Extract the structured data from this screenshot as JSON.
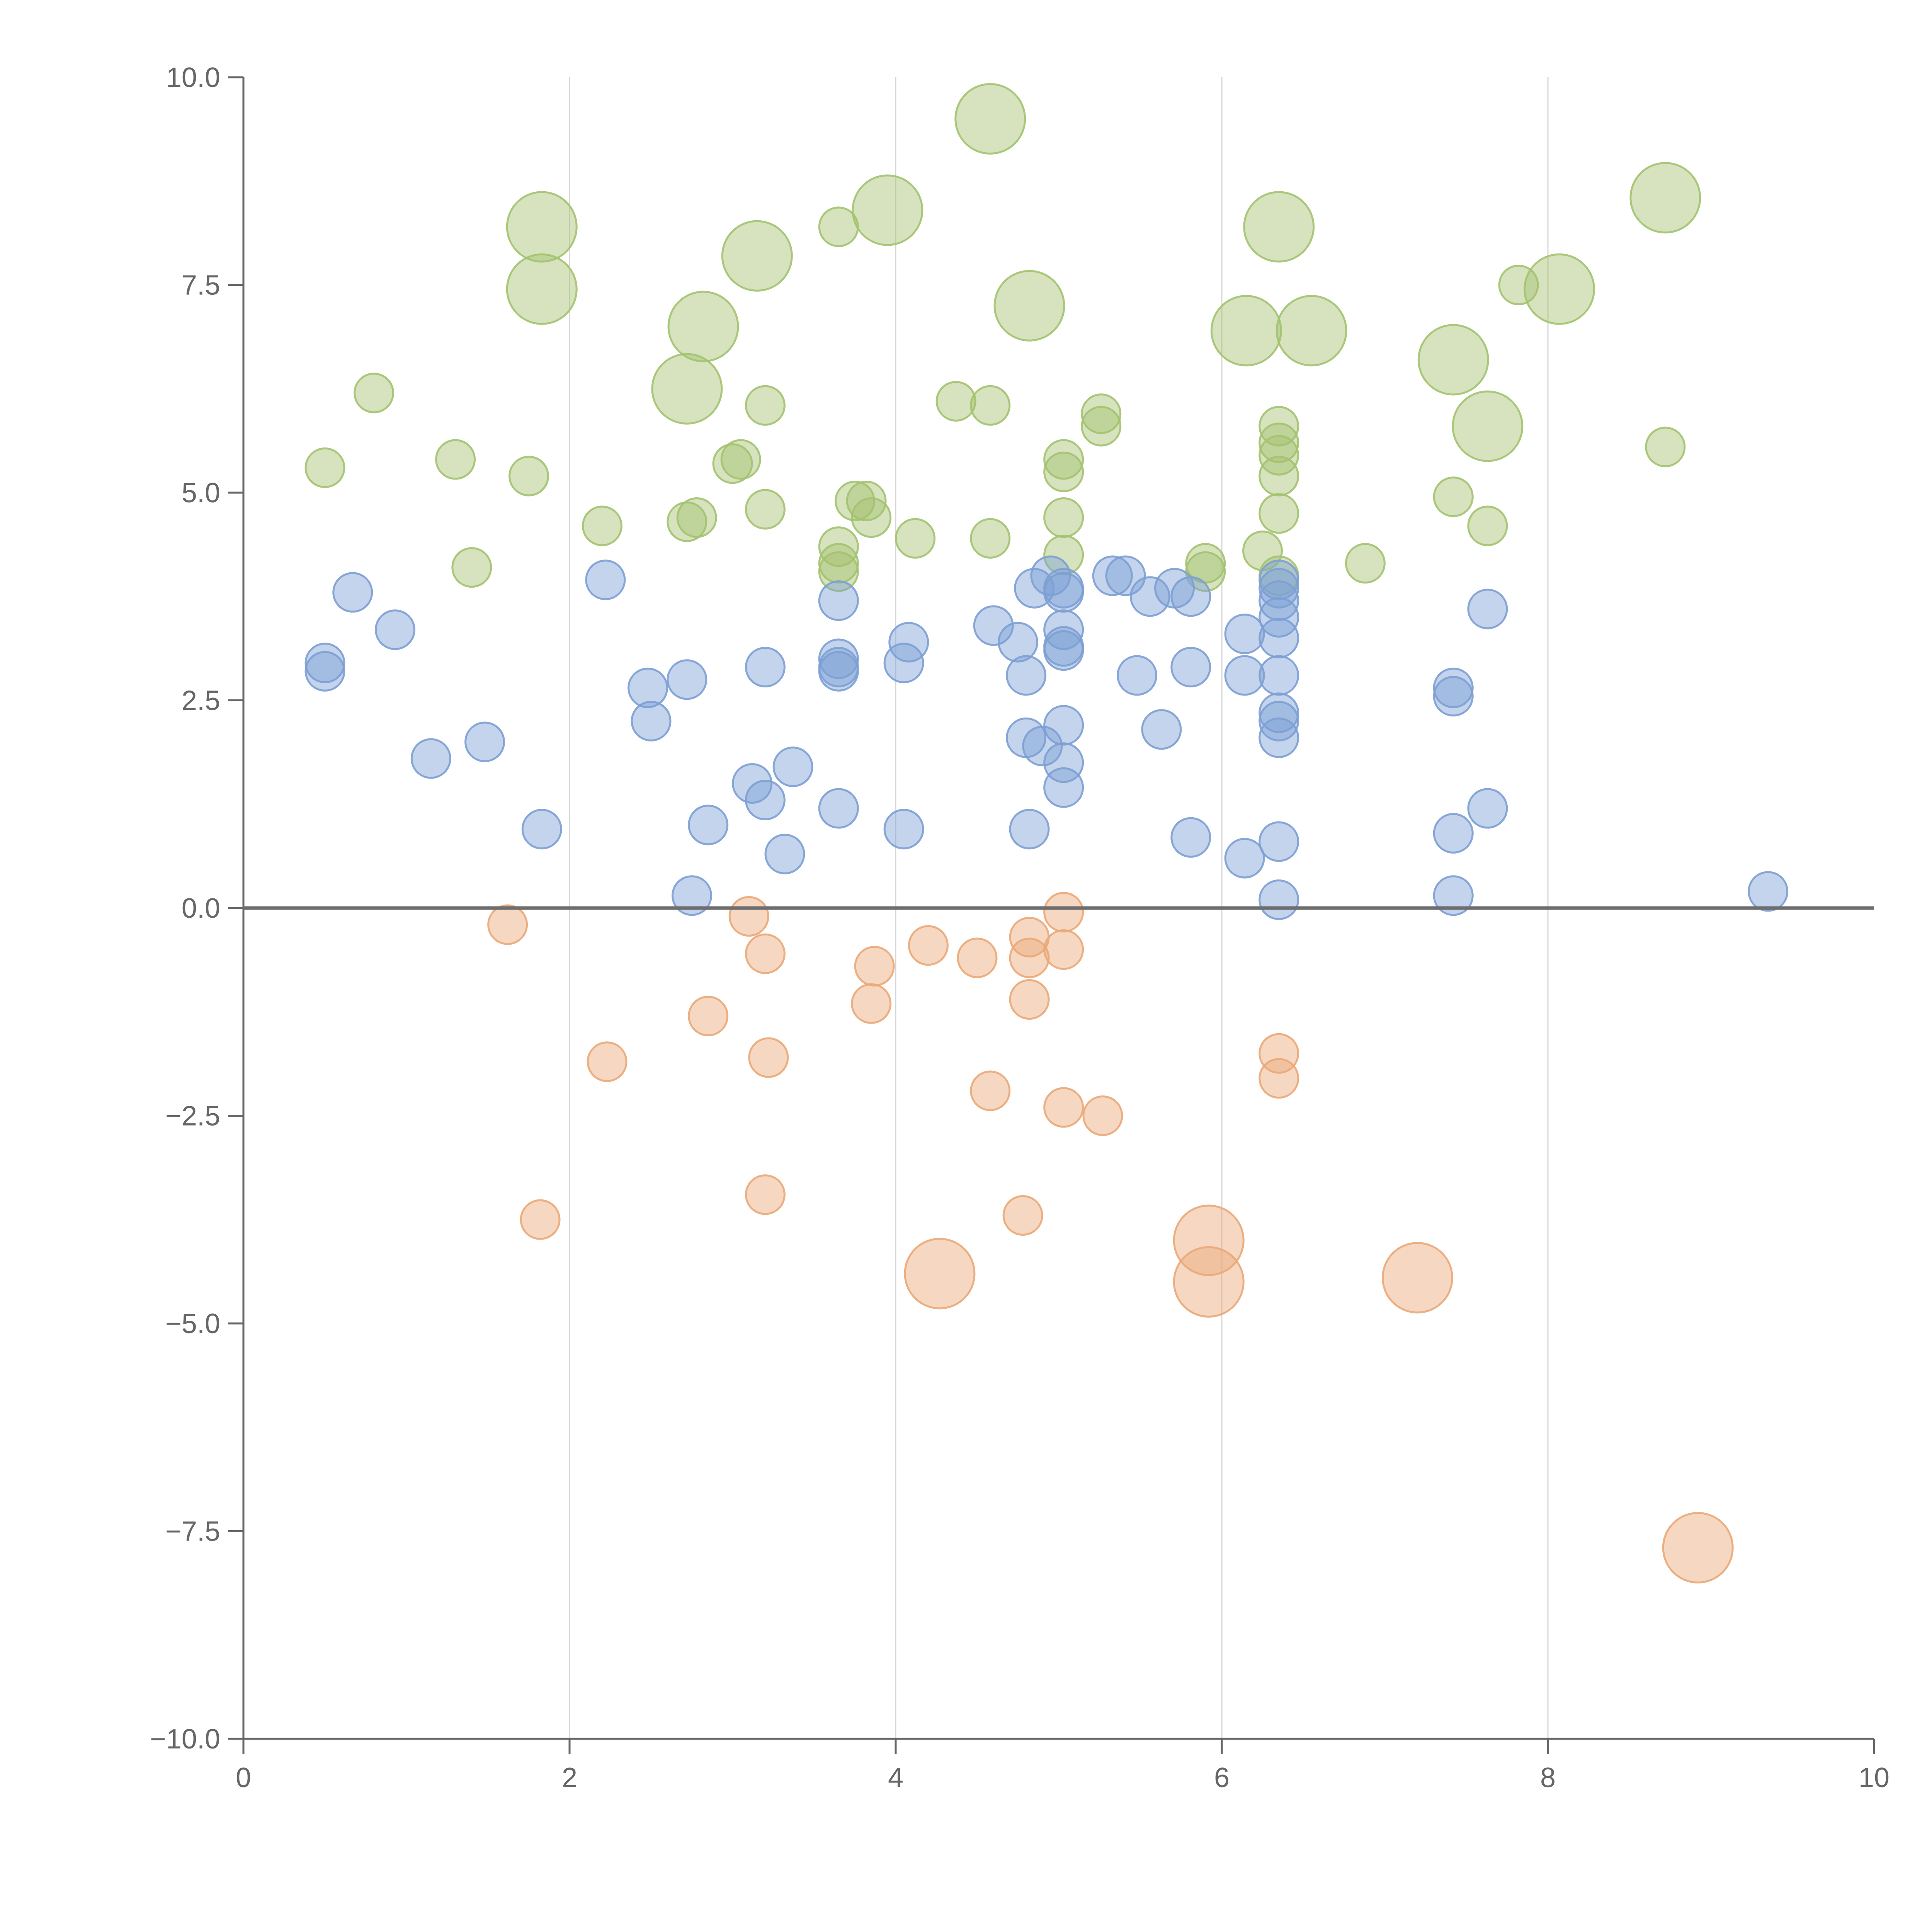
{
  "chart_data": {
    "type": "scatter",
    "title": "",
    "xlabel": "",
    "ylabel": "",
    "xlim": [
      0,
      10
    ],
    "ylim": [
      -10,
      10
    ],
    "x_ticks": [
      "0",
      "2",
      "4",
      "6",
      "8",
      "10"
    ],
    "y_ticks": [
      "−10.0",
      "−7.5",
      "−5.0",
      "−2.5",
      "0.0",
      "2.5",
      "5.0",
      "7.5",
      "10.0"
    ],
    "vertical_grid_at": [
      2,
      4,
      6,
      8
    ],
    "horizontal_reference_at": 0,
    "legend": "none",
    "series": [
      {
        "color": "#a3c26f",
        "points": [
          [
            0.8,
            6.2,
            1
          ],
          [
            0.5,
            5.3,
            1
          ],
          [
            1.3,
            5.4,
            1
          ],
          [
            1.75,
            5.2,
            1
          ],
          [
            1.4,
            4.1,
            1
          ],
          [
            1.83,
            8.2,
            3
          ],
          [
            1.83,
            7.45,
            3
          ],
          [
            2.2,
            4.6,
            1
          ],
          [
            2.72,
            4.65,
            1
          ],
          [
            2.78,
            4.7,
            1
          ],
          [
            2.72,
            6.25,
            3
          ],
          [
            2.82,
            7.0,
            3
          ],
          [
            3.0,
            5.35,
            1
          ],
          [
            3.05,
            5.4,
            1
          ],
          [
            3.2,
            6.05,
            1
          ],
          [
            3.2,
            4.8,
            1
          ],
          [
            3.15,
            7.85,
            3
          ],
          [
            3.65,
            8.2,
            1
          ],
          [
            3.95,
            8.4,
            3
          ],
          [
            3.65,
            4.35,
            1
          ],
          [
            3.65,
            4.15,
            1
          ],
          [
            3.65,
            4.05,
            1
          ],
          [
            3.75,
            4.9,
            1
          ],
          [
            3.82,
            4.9,
            1
          ],
          [
            3.85,
            4.7,
            1
          ],
          [
            4.12,
            4.45,
            1
          ],
          [
            4.37,
            6.1,
            1
          ],
          [
            4.58,
            6.05,
            1
          ],
          [
            4.58,
            9.5,
            3
          ],
          [
            4.58,
            4.45,
            1
          ],
          [
            4.82,
            7.25,
            3
          ],
          [
            5.03,
            5.4,
            1
          ],
          [
            5.03,
            5.25,
            1
          ],
          [
            5.03,
            4.7,
            1
          ],
          [
            5.03,
            4.25,
            1
          ],
          [
            5.26,
            5.95,
            1
          ],
          [
            5.26,
            5.8,
            1
          ],
          [
            5.9,
            4.15,
            1
          ],
          [
            5.9,
            4.05,
            1
          ],
          [
            6.15,
            6.95,
            3
          ],
          [
            6.25,
            4.3,
            1
          ],
          [
            6.35,
            8.2,
            3
          ],
          [
            6.35,
            5.8,
            1
          ],
          [
            6.35,
            5.6,
            1
          ],
          [
            6.35,
            5.45,
            1
          ],
          [
            6.35,
            5.2,
            1
          ],
          [
            6.35,
            4.75,
            1
          ],
          [
            6.35,
            4.0,
            1
          ],
          [
            6.55,
            6.95,
            3
          ],
          [
            6.88,
            4.15,
            1
          ],
          [
            7.42,
            6.6,
            3
          ],
          [
            7.42,
            4.95,
            1
          ],
          [
            7.63,
            5.8,
            3
          ],
          [
            7.63,
            4.6,
            1
          ],
          [
            7.82,
            7.5,
            1
          ],
          [
            8.07,
            7.45,
            3
          ],
          [
            8.72,
            8.55,
            3
          ],
          [
            8.72,
            5.55,
            1
          ]
        ]
      },
      {
        "color": "#7c9fd4",
        "points": [
          [
            0.5,
            2.95,
            1
          ],
          [
            0.5,
            2.85,
            1
          ],
          [
            0.67,
            3.8,
            1
          ],
          [
            0.93,
            3.35,
            1
          ],
          [
            1.15,
            1.8,
            1
          ],
          [
            1.48,
            2.0,
            1
          ],
          [
            1.83,
            0.95,
            1
          ],
          [
            2.22,
            3.95,
            1
          ],
          [
            2.48,
            2.65,
            1
          ],
          [
            2.5,
            2.25,
            1
          ],
          [
            2.72,
            2.75,
            1
          ],
          [
            2.75,
            0.15,
            1
          ],
          [
            2.85,
            1.0,
            1
          ],
          [
            3.12,
            1.5,
            1
          ],
          [
            3.2,
            1.3,
            1
          ],
          [
            3.2,
            2.9,
            1
          ],
          [
            3.32,
            0.65,
            1
          ],
          [
            3.37,
            1.7,
            1
          ],
          [
            3.65,
            3.7,
            1
          ],
          [
            3.65,
            3.0,
            1
          ],
          [
            3.65,
            2.9,
            1
          ],
          [
            3.65,
            2.85,
            1
          ],
          [
            3.65,
            1.2,
            1
          ],
          [
            4.05,
            2.95,
            1
          ],
          [
            4.05,
            0.95,
            1
          ],
          [
            4.08,
            3.2,
            1
          ],
          [
            4.6,
            3.4,
            1
          ],
          [
            4.75,
            3.2,
            1
          ],
          [
            4.8,
            2.8,
            1
          ],
          [
            4.8,
            2.05,
            1
          ],
          [
            4.82,
            0.95,
            1
          ],
          [
            4.85,
            3.85,
            1
          ],
          [
            4.9,
            1.95,
            1
          ],
          [
            4.95,
            4.0,
            1
          ],
          [
            5.03,
            3.85,
            1
          ],
          [
            5.03,
            3.8,
            1
          ],
          [
            5.03,
            3.35,
            1
          ],
          [
            5.03,
            3.15,
            1
          ],
          [
            5.03,
            3.1,
            1
          ],
          [
            5.03,
            2.2,
            1
          ],
          [
            5.03,
            1.75,
            1
          ],
          [
            5.03,
            1.45,
            1
          ],
          [
            5.33,
            4.0,
            1
          ],
          [
            5.41,
            4.0,
            1
          ],
          [
            5.48,
            2.8,
            1
          ],
          [
            5.56,
            3.75,
            1
          ],
          [
            5.63,
            2.15,
            1
          ],
          [
            5.71,
            3.85,
            1
          ],
          [
            5.81,
            3.75,
            1
          ],
          [
            5.81,
            2.9,
            1
          ],
          [
            5.81,
            0.85,
            1
          ],
          [
            6.14,
            3.3,
            1
          ],
          [
            6.14,
            2.8,
            1
          ],
          [
            6.14,
            0.6,
            1
          ],
          [
            6.35,
            3.95,
            1
          ],
          [
            6.35,
            3.85,
            1
          ],
          [
            6.35,
            3.7,
            1
          ],
          [
            6.35,
            3.5,
            1
          ],
          [
            6.35,
            3.25,
            1
          ],
          [
            6.35,
            2.8,
            1
          ],
          [
            6.35,
            2.35,
            1
          ],
          [
            6.35,
            2.25,
            1
          ],
          [
            6.35,
            2.05,
            1
          ],
          [
            6.35,
            0.8,
            1
          ],
          [
            6.35,
            0.1,
            1
          ],
          [
            7.42,
            2.65,
            1
          ],
          [
            7.42,
            2.55,
            1
          ],
          [
            7.42,
            0.9,
            1
          ],
          [
            7.42,
            0.15,
            1
          ],
          [
            7.63,
            3.6,
            1
          ],
          [
            7.63,
            1.2,
            1
          ],
          [
            9.35,
            0.2,
            1
          ]
        ]
      },
      {
        "color": "#eaa878",
        "points": [
          [
            1.62,
            -0.2,
            1
          ],
          [
            1.82,
            -3.75,
            1
          ],
          [
            2.23,
            -1.85,
            1
          ],
          [
            2.85,
            -1.3,
            1
          ],
          [
            3.1,
            -0.1,
            1
          ],
          [
            3.2,
            -0.55,
            1
          ],
          [
            3.22,
            -1.8,
            1
          ],
          [
            3.2,
            -3.45,
            1
          ],
          [
            3.87,
            -0.7,
            1
          ],
          [
            3.85,
            -1.15,
            1
          ],
          [
            4.2,
            -0.45,
            1
          ],
          [
            4.27,
            -4.4,
            3
          ],
          [
            4.5,
            -0.6,
            1
          ],
          [
            4.58,
            -2.2,
            1
          ],
          [
            4.78,
            -3.7,
            1
          ],
          [
            4.82,
            -0.35,
            1
          ],
          [
            4.82,
            -0.6,
            1
          ],
          [
            4.82,
            -1.1,
            1
          ],
          [
            5.03,
            -0.05,
            1
          ],
          [
            5.03,
            -0.5,
            1
          ],
          [
            5.03,
            -2.4,
            1
          ],
          [
            5.27,
            -2.5,
            1
          ],
          [
            5.92,
            -4.0,
            3
          ],
          [
            5.92,
            -4.5,
            3
          ],
          [
            6.35,
            -1.75,
            1
          ],
          [
            6.35,
            -2.05,
            1
          ],
          [
            7.2,
            -4.45,
            3
          ],
          [
            8.92,
            -7.7,
            3
          ]
        ]
      }
    ]
  }
}
